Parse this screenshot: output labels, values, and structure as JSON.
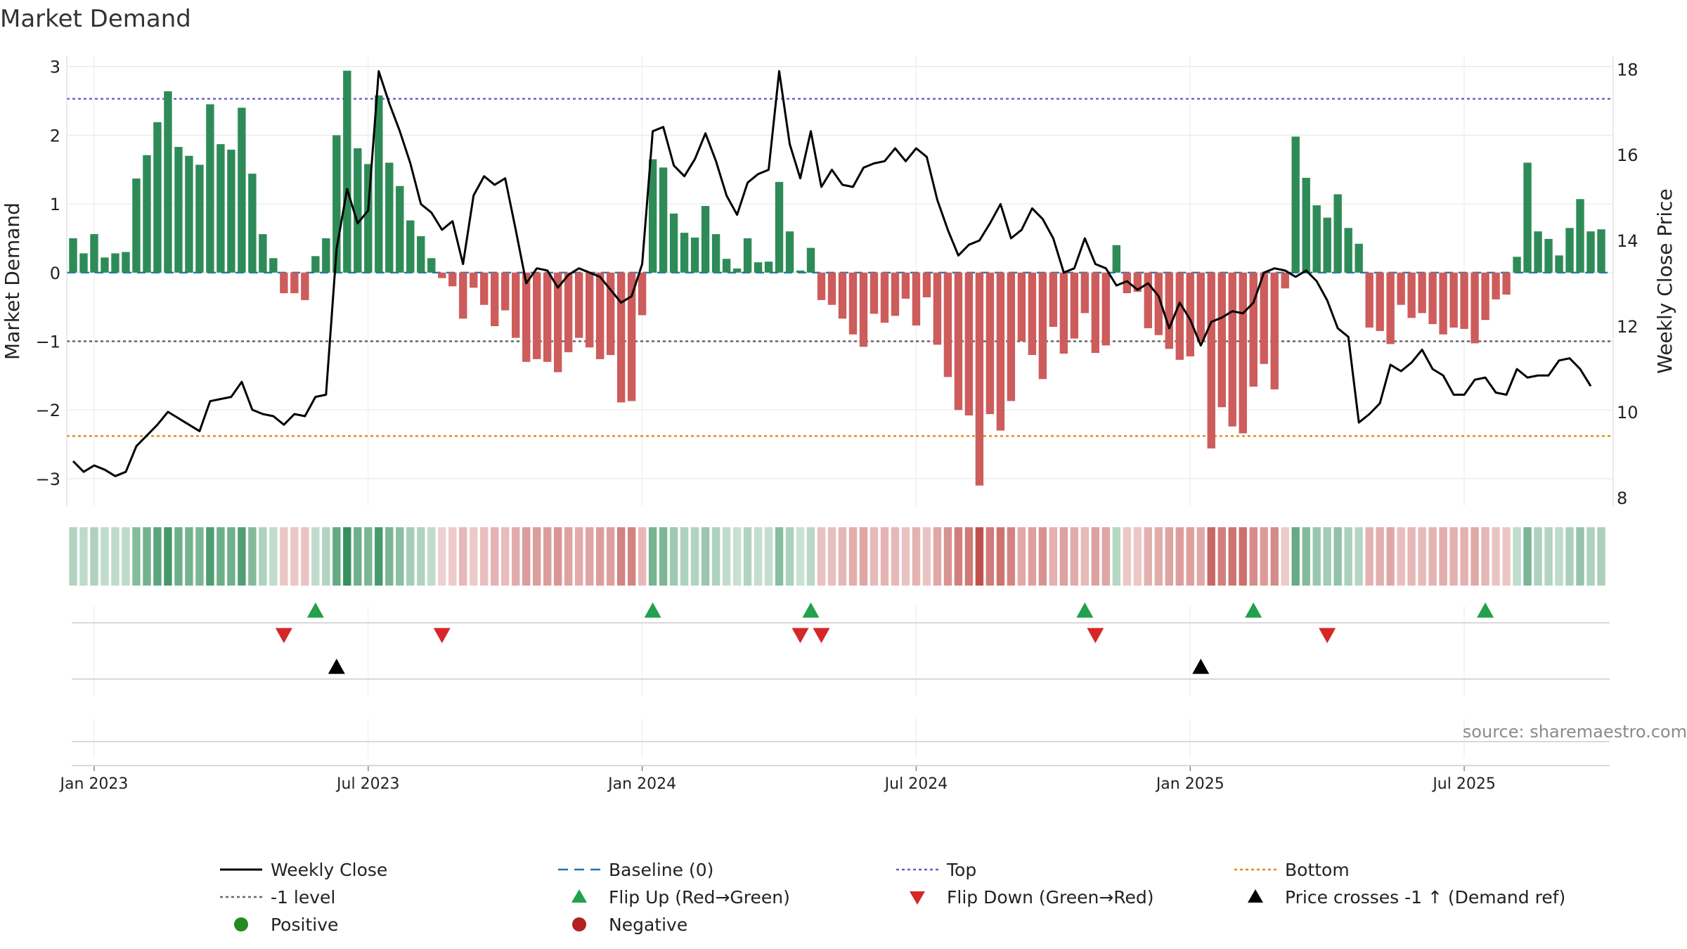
{
  "chart_data": {
    "type": "bar+line",
    "title": "Market Demand",
    "ylabel_left": "Market Demand",
    "ylabel_right": "Weekly Close Price",
    "left_ylim": [
      -3.4,
      3.15
    ],
    "right_ylim": [
      7.8,
      18.3
    ],
    "left_ticks": [
      {
        "v": 3,
        "label": "3"
      },
      {
        "v": 2,
        "label": "2"
      },
      {
        "v": 1,
        "label": "1"
      },
      {
        "v": 0,
        "label": "0"
      },
      {
        "v": -1,
        "label": "−1"
      },
      {
        "v": -2,
        "label": "−2"
      },
      {
        "v": -3,
        "label": "−3"
      }
    ],
    "right_ticks": [
      {
        "v": 18,
        "label": "18"
      },
      {
        "v": 16,
        "label": "16"
      },
      {
        "v": 14,
        "label": "14"
      },
      {
        "v": 12,
        "label": "12"
      },
      {
        "v": 10,
        "label": "10"
      },
      {
        "v": 8,
        "label": "8"
      }
    ],
    "x_ticks": [
      {
        "week": 2,
        "label": "Jan 2023"
      },
      {
        "week": 28,
        "label": "Jul 2023"
      },
      {
        "week": 54,
        "label": "Jan 2024"
      },
      {
        "week": 80,
        "label": "Jul 2024"
      },
      {
        "week": 106,
        "label": "Jan 2025"
      },
      {
        "week": 132,
        "label": "Jul 2025"
      }
    ],
    "reference_lines": {
      "top": 2.53,
      "bottom": -2.38,
      "minus_one": -1,
      "baseline": 0
    },
    "colors": {
      "positive_bar": "#2e8b57",
      "negative_bar": "#cd5c5c",
      "price": "#000000",
      "top": "#6a5acd",
      "bottom": "#e08a10",
      "minus_one": "#666666",
      "baseline": "#1f77b4",
      "flip_up": "#22a04b",
      "flip_down": "#d62728",
      "cross": "#000000",
      "legend_positive": "#228b22",
      "legend_negative": "#b22222"
    },
    "demand": [
      0.5,
      0.28,
      0.56,
      0.22,
      0.28,
      0.3,
      1.37,
      1.71,
      2.19,
      2.64,
      1.83,
      1.7,
      1.57,
      2.45,
      1.87,
      1.79,
      2.4,
      1.44,
      0.56,
      0.21,
      -0.3,
      -0.3,
      -0.4,
      0.24,
      0.5,
      2.0,
      2.94,
      1.81,
      1.58,
      2.58,
      1.6,
      1.26,
      0.76,
      0.53,
      0.21,
      -0.08,
      -0.2,
      -0.67,
      -0.22,
      -0.47,
      -0.78,
      -0.55,
      -0.95,
      -1.3,
      -1.26,
      -1.3,
      -1.45,
      -1.16,
      -0.95,
      -1.09,
      -1.26,
      -1.2,
      -1.89,
      -1.87,
      -0.62,
      1.65,
      1.53,
      0.86,
      0.58,
      0.51,
      0.97,
      0.56,
      0.2,
      0.06,
      0.5,
      0.15,
      0.16,
      1.32,
      0.6,
      0.03,
      0.36,
      -0.4,
      -0.47,
      -0.67,
      -0.9,
      -1.08,
      -0.6,
      -0.73,
      -0.63,
      -0.38,
      -0.77,
      -0.36,
      -1.05,
      -1.52,
      -2.0,
      -2.08,
      -3.1,
      -2.06,
      -2.3,
      -1.87,
      -1.0,
      -1.2,
      -1.55,
      -0.79,
      -1.18,
      -0.96,
      -0.59,
      -1.17,
      -1.06,
      0.4,
      -0.3,
      -0.28,
      -0.81,
      -0.91,
      -1.11,
      -1.27,
      -1.22,
      -1.0,
      -2.56,
      -1.96,
      -2.24,
      -2.34,
      -1.66,
      -1.33,
      -1.7,
      -0.23,
      1.98,
      1.38,
      0.98,
      0.8,
      1.14,
      0.65,
      0.42,
      -0.8,
      -0.85,
      -1.04,
      -0.47,
      -0.66,
      -0.59,
      -0.75,
      -0.9,
      -0.8,
      -0.82,
      -1.03,
      -0.69,
      -0.39,
      -0.32,
      0.23,
      1.6,
      0.6,
      0.49,
      0.25,
      0.65,
      1.07,
      0.6,
      0.63
    ],
    "price": [
      8.85,
      8.6,
      8.75,
      8.65,
      8.5,
      8.6,
      9.2,
      9.45,
      9.7,
      10.0,
      9.85,
      9.7,
      9.55,
      10.25,
      10.3,
      10.35,
      10.7,
      10.05,
      9.95,
      9.9,
      9.7,
      9.95,
      9.9,
      10.35,
      10.4,
      13.8,
      15.2,
      14.4,
      14.7,
      17.95,
      17.2,
      16.55,
      15.8,
      14.85,
      14.65,
      14.25,
      14.45,
      13.45,
      15.05,
      15.5,
      15.3,
      15.45,
      14.25,
      13.0,
      13.35,
      13.3,
      12.9,
      13.2,
      13.35,
      13.25,
      13.15,
      12.85,
      12.55,
      12.7,
      13.45,
      16.55,
      16.65,
      15.75,
      15.5,
      15.9,
      16.5,
      15.85,
      15.05,
      14.6,
      15.35,
      15.55,
      15.65,
      17.95,
      16.25,
      15.45,
      16.55,
      15.25,
      15.65,
      15.3,
      15.25,
      15.7,
      15.8,
      15.85,
      16.15,
      15.85,
      16.15,
      15.95,
      14.95,
      14.25,
      13.65,
      13.9,
      14.0,
      14.4,
      14.85,
      14.05,
      14.25,
      14.75,
      14.5,
      14.05,
      13.25,
      13.35,
      14.05,
      13.45,
      13.35,
      12.95,
      13.05,
      12.85,
      13.0,
      12.7,
      11.95,
      12.55,
      12.15,
      11.55,
      12.1,
      12.2,
      12.35,
      12.3,
      12.55,
      13.25,
      13.35,
      13.3,
      13.15,
      13.3,
      13.05,
      12.6,
      11.95,
      11.75,
      9.75,
      9.95,
      10.2,
      11.1,
      10.95,
      11.15,
      11.45,
      11.0,
      10.85,
      10.4,
      10.4,
      10.75,
      10.8,
      10.45,
      10.4,
      11.0,
      10.8,
      10.85,
      10.85,
      11.2,
      11.25,
      11.0,
      10.6
    ]
  },
  "state_strip": {
    "rows": [
      {
        "type": "flip_up",
        "weeks": [
          23,
          55,
          70,
          96,
          112,
          134
        ]
      },
      {
        "type": "flip_down",
        "weeks": [
          20,
          35,
          69,
          71,
          97,
          119
        ]
      },
      {
        "type": "cross",
        "weeks": [
          25,
          107
        ]
      }
    ]
  },
  "source_note": "source: sharemaestro.com",
  "legend": [
    {
      "key": "weekly_close",
      "label": "Weekly Close"
    },
    {
      "key": "baseline",
      "label": "Baseline (0)"
    },
    {
      "key": "top",
      "label": "Top"
    },
    {
      "key": "bottom",
      "label": "Bottom"
    },
    {
      "key": "minus_one",
      "label": "-1 level"
    },
    {
      "key": "flip_up",
      "label": "Flip Up (Red→Green)"
    },
    {
      "key": "flip_down",
      "label": "Flip Down (Green→Red)"
    },
    {
      "key": "cross",
      "label": "Price crosses -1 ↑ (Demand ref)"
    },
    {
      "key": "positive",
      "label": "Positive"
    },
    {
      "key": "negative",
      "label": "Negative"
    }
  ]
}
